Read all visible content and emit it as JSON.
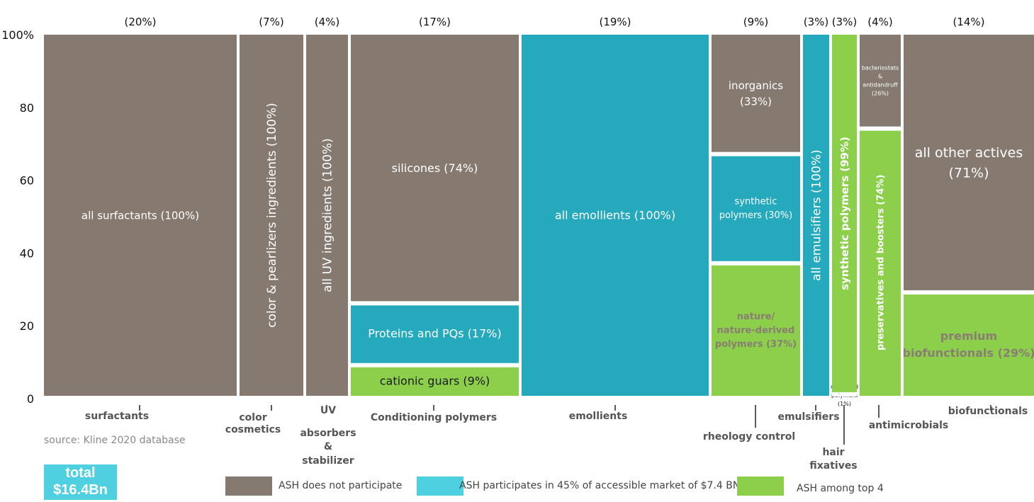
{
  "colors": {
    "grey": "#857970",
    "blue": "#24a9bd",
    "green": "#8ccf4a"
  },
  "source": "source: Kline 2020 database",
  "total": [
    "total",
    "$16.4Bn"
  ],
  "legend": [
    {
      "label": "ASH does not participate",
      "color": "#857970"
    },
    {
      "label": "ASH participates in 45% of accessible market of $7.4 BN",
      "color": "#4fd0e0"
    },
    {
      "label": "ASH among top 4",
      "color": "#8ccf4a"
    }
  ],
  "chart_data": {
    "type": "marimekko",
    "yticks": [
      "100%",
      "80",
      "60",
      "40",
      "20",
      "0"
    ],
    "ylim": [
      0,
      100
    ],
    "columns": [
      {
        "category": [
          "surfactants"
        ],
        "share": 20,
        "share_label": "(20%)",
        "segments": [
          {
            "label": [
              "all surfactants (100%)"
            ],
            "value": 100,
            "participation": "does not participate"
          }
        ]
      },
      {
        "category": [
          "color",
          "cosmetics"
        ],
        "share": 7,
        "share_label": "(7%)",
        "segments": [
          {
            "label": [
              "color & pearlizers  ingredients (100%)"
            ],
            "value": 100,
            "participation": "does not participate"
          }
        ]
      },
      {
        "category": [
          "UV",
          "absorbers",
          "&",
          "stabilizer"
        ],
        "share": 4,
        "share_label": "(4%)",
        "segments": [
          {
            "label": [
              "all UV ingredients (100%)"
            ],
            "value": 100,
            "participation": "does not participate"
          }
        ]
      },
      {
        "category": [
          "Conditioning polymers"
        ],
        "share": 17,
        "share_label": "(17%)",
        "segments": [
          {
            "label": [
              "cationic guars (9%)"
            ],
            "value": 9,
            "participation": "among top 4"
          },
          {
            "label": [
              "Proteins and PQs (17%)"
            ],
            "value": 17,
            "participation": "participates"
          },
          {
            "label": [
              "silicones (74%)"
            ],
            "value": 74,
            "participation": "does not participate"
          }
        ]
      },
      {
        "category": [
          "emollients"
        ],
        "share": 19,
        "share_label": "(19%)",
        "segments": [
          {
            "label": [
              "all emollients (100%)"
            ],
            "value": 100,
            "participation": "participates"
          }
        ]
      },
      {
        "category": [
          "rheology control"
        ],
        "share": 9,
        "share_label": "(9%)",
        "segments": [
          {
            "label": [
              "nature/",
              "nature-derived",
              "polymers (37%)"
            ],
            "value": 37,
            "participation": "among top 4"
          },
          {
            "label": [
              "synthetic",
              "polymers (30%)"
            ],
            "value": 30,
            "participation": "participates"
          },
          {
            "label": [
              "inorganics",
              "(33%)"
            ],
            "value": 33,
            "participation": "does not participate"
          }
        ]
      },
      {
        "category": [
          "emulsifiers"
        ],
        "share": 3,
        "share_label": "(3%)",
        "segments": [
          {
            "label": [
              "all emulsifiers (100%)"
            ],
            "value": 100,
            "participation": "participates"
          }
        ]
      },
      {
        "category": [
          "hair",
          "fixatives"
        ],
        "share": 3,
        "share_label": "(3%)",
        "segments": [
          {
            "label": [
              "nature/nd",
              "polymers",
              "(1%)"
            ],
            "value": 1,
            "participation": "among top 4"
          },
          {
            "label": [
              "synthetic  polymers (99%)"
            ],
            "value": 99,
            "participation": "among top 4"
          }
        ]
      },
      {
        "category": [
          "antimicrobials"
        ],
        "share": 4,
        "share_label": "(4%)",
        "segments": [
          {
            "label": [
              "preservatives and boosters (74%)"
            ],
            "value": 74,
            "participation": "among top 4"
          },
          {
            "label": [
              "bacteriostats",
              "&",
              "antidandruff",
              "(26%)"
            ],
            "value": 26,
            "participation": "does not participate"
          }
        ]
      },
      {
        "category": [
          "biofunctionals"
        ],
        "share": 14,
        "share_label": "(14%)",
        "segments": [
          {
            "label": [
              "premium",
              "biofunctionals (29%)"
            ],
            "value": 29,
            "participation": "among top 4"
          },
          {
            "label": [
              "all other actives",
              "(71%)"
            ],
            "value": 71,
            "participation": "does not participate"
          }
        ]
      }
    ]
  }
}
